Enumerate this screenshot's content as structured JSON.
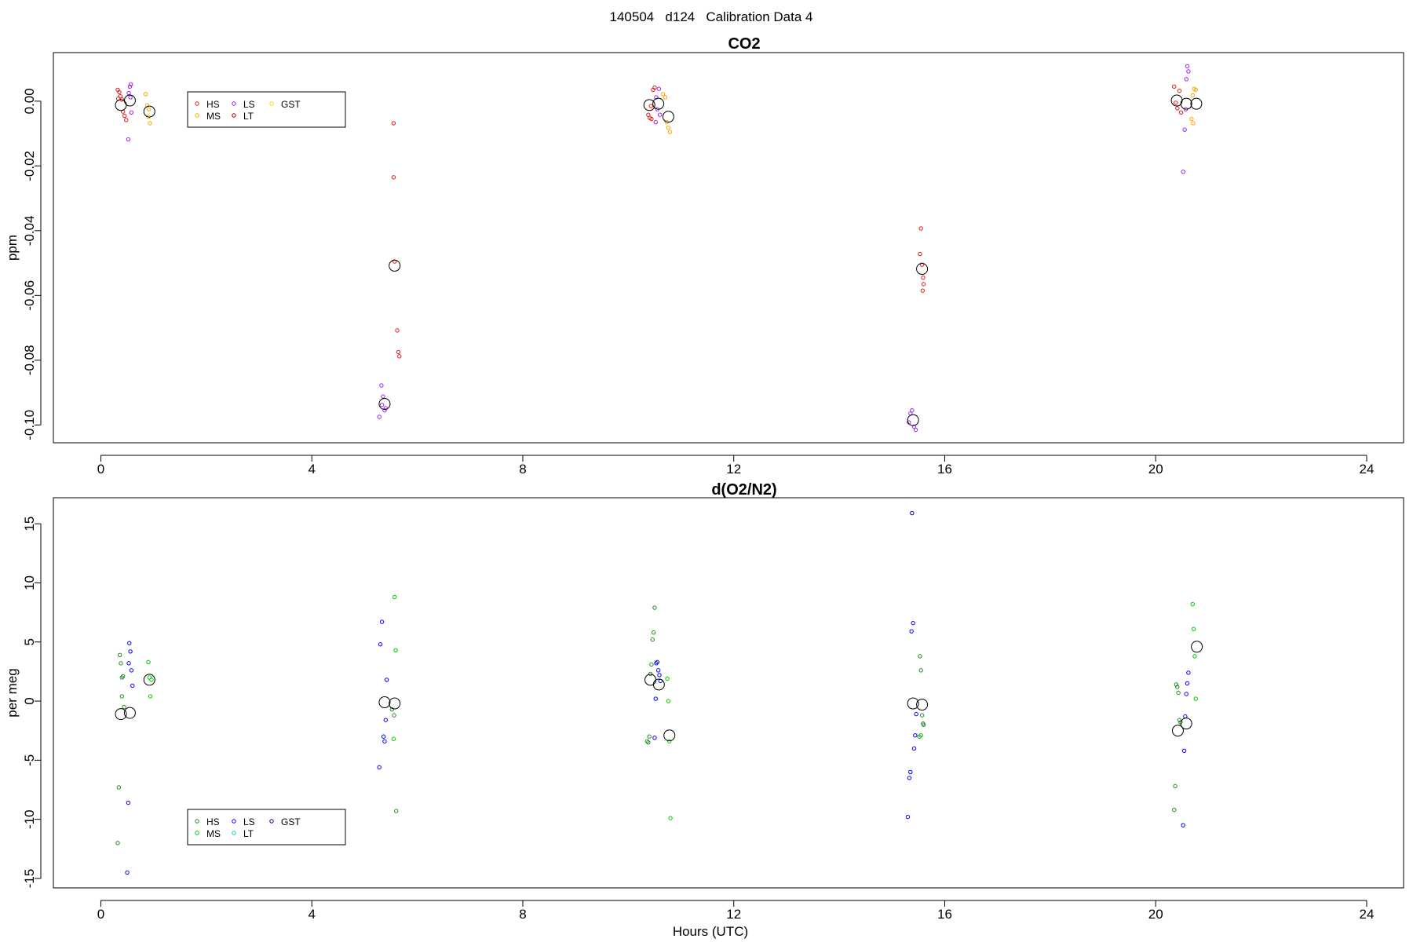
{
  "page_title": "140504   d124   Calibration Data 4",
  "chart_data": [
    {
      "type": "scatter",
      "title": "CO2",
      "xlabel": "",
      "ylabel": "ppm",
      "xlim": [
        -0.9,
        24.7
      ],
      "ylim": [
        -0.1055,
        0.015
      ],
      "x_ticks": [
        0,
        4,
        8,
        12,
        16,
        20,
        24
      ],
      "y_ticks": [
        0.0,
        -0.02,
        -0.04,
        -0.06,
        -0.08,
        -0.1
      ],
      "y_tick_labels": [
        "0.00",
        "-0.02",
        "-0.04",
        "-0.06",
        "-0.08",
        "-0.10"
      ],
      "grid": false,
      "legend": {
        "position": "top-left",
        "entries": [
          {
            "name": "HS",
            "color": "#E41A1C"
          },
          {
            "name": "MS",
            "color": "#FFA500"
          },
          {
            "name": "LS",
            "color": "#A020F0"
          },
          {
            "name": "LT",
            "color": "#8B0000"
          },
          {
            "name": "GST",
            "color": "#FFD700"
          }
        ]
      },
      "series": [
        {
          "name": "HS",
          "color": "#E41A1C",
          "points": [
            [
              0.32,
              0.0035
            ],
            [
              0.35,
              0.0028
            ],
            [
              0.37,
              0.0015
            ],
            [
              0.4,
              0.0005
            ],
            [
              0.42,
              -0.0032
            ],
            [
              0.45,
              -0.0045
            ],
            [
              0.48,
              -0.0058
            ],
            [
              0.33,
              0.0008
            ],
            [
              5.55,
              -0.0068
            ],
            [
              5.55,
              -0.0235
            ],
            [
              5.57,
              -0.0495
            ],
            [
              5.62,
              -0.0708
            ],
            [
              5.64,
              -0.0775
            ],
            [
              5.66,
              -0.0788
            ],
            [
              10.38,
              -0.0042
            ],
            [
              10.41,
              -0.0052
            ],
            [
              10.44,
              -0.0055
            ],
            [
              10.47,
              0.0035
            ],
            [
              10.5,
              0.0042
            ],
            [
              10.43,
              -0.0015
            ],
            [
              15.55,
              -0.0393
            ],
            [
              15.53,
              -0.0472
            ],
            [
              15.57,
              -0.0505
            ],
            [
              15.59,
              -0.0545
            ],
            [
              15.6,
              -0.0565
            ],
            [
              15.58,
              -0.0585
            ],
            [
              20.35,
              0.0045
            ],
            [
              20.38,
              -0.0005
            ],
            [
              20.41,
              -0.0022
            ],
            [
              20.45,
              0.0032
            ],
            [
              20.48,
              -0.0035
            ]
          ]
        },
        {
          "name": "LS",
          "color": "#A020F0",
          "points": [
            [
              0.52,
              -0.0118
            ],
            [
              0.55,
              0.0045
            ],
            [
              0.57,
              0.0052
            ],
            [
              0.53,
              0.0025
            ],
            [
              0.58,
              -0.0035
            ],
            [
              0.56,
              0.0012
            ],
            [
              5.28,
              -0.0975
            ],
            [
              5.32,
              -0.0878
            ],
            [
              5.35,
              -0.0912
            ],
            [
              5.38,
              -0.0955
            ],
            [
              5.4,
              -0.0948
            ],
            [
              5.33,
              -0.0938
            ],
            [
              10.52,
              -0.0065
            ],
            [
              10.55,
              -0.0025
            ],
            [
              10.58,
              0.0038
            ],
            [
              10.6,
              -0.0042
            ],
            [
              10.53,
              0.0012
            ],
            [
              15.32,
              -0.0992
            ],
            [
              15.35,
              -0.0965
            ],
            [
              15.38,
              -0.0955
            ],
            [
              15.42,
              -0.1005
            ],
            [
              15.45,
              -0.1015
            ],
            [
              20.52,
              -0.0218
            ],
            [
              20.55,
              -0.0088
            ],
            [
              20.58,
              0.0068
            ],
            [
              20.6,
              0.0108
            ],
            [
              20.62,
              0.0092
            ],
            [
              20.57,
              -0.0025
            ]
          ]
        },
        {
          "name": "MS",
          "color": "#FFA500",
          "points": [
            [
              0.85,
              0.0022
            ],
            [
              0.88,
              -0.0012
            ],
            [
              0.9,
              -0.0048
            ],
            [
              0.93,
              -0.0068
            ],
            [
              0.91,
              -0.0025
            ],
            [
              10.7,
              0.0012
            ],
            [
              10.73,
              -0.0065
            ],
            [
              10.76,
              -0.0082
            ],
            [
              10.79,
              -0.0095
            ],
            [
              10.66,
              0.0022
            ],
            [
              20.68,
              -0.0055
            ],
            [
              20.71,
              -0.0068
            ],
            [
              20.73,
              0.0038
            ],
            [
              20.76,
              0.0035
            ],
            [
              20.7,
              0.0018
            ]
          ]
        },
        {
          "name": "Mean",
          "color": "#000000",
          "marker": "large",
          "points": [
            [
              0.38,
              -0.0012
            ],
            [
              0.55,
              0.0002
            ],
            [
              0.92,
              -0.0032
            ],
            [
              5.38,
              -0.0935
            ],
            [
              5.57,
              -0.0508
            ],
            [
              10.4,
              -0.0012
            ],
            [
              10.57,
              -0.0008
            ],
            [
              10.76,
              -0.0048
            ],
            [
              15.4,
              -0.0985
            ],
            [
              15.57,
              -0.0518
            ],
            [
              20.4,
              0.0002
            ],
            [
              20.58,
              -0.0008
            ],
            [
              20.77,
              -0.0008
            ]
          ]
        }
      ]
    },
    {
      "type": "scatter",
      "title": "d(O2/N2)",
      "xlabel": "Hours (UTC)",
      "ylabel": "per meg",
      "xlim": [
        -0.9,
        24.7
      ],
      "ylim": [
        -15.8,
        17.2
      ],
      "x_ticks": [
        0,
        4,
        8,
        12,
        16,
        20,
        24
      ],
      "y_ticks": [
        15,
        10,
        5,
        0,
        -5,
        -10,
        -15
      ],
      "y_tick_labels": [
        "15",
        "10",
        "5",
        "0",
        "-5",
        "-10",
        "-15"
      ],
      "grid": false,
      "legend": {
        "position": "bottom-left",
        "entries": [
          {
            "name": "HS",
            "color": "#228B22"
          },
          {
            "name": "MS",
            "color": "#00CC00"
          },
          {
            "name": "LS",
            "color": "#0000FF"
          },
          {
            "name": "LT",
            "color": "#00CED1"
          },
          {
            "name": "GST",
            "color": "#00008B"
          }
        ]
      },
      "series": [
        {
          "name": "HS",
          "color": "#228B22",
          "points": [
            [
              0.32,
              -12.0
            ],
            [
              0.34,
              -7.3
            ],
            [
              0.36,
              3.9
            ],
            [
              0.38,
              3.2
            ],
            [
              0.4,
              2.0
            ],
            [
              0.42,
              2.1
            ],
            [
              0.4,
              0.4
            ],
            [
              0.44,
              -0.5
            ],
            [
              5.52,
              -0.7
            ],
            [
              5.56,
              -1.2
            ],
            [
              5.6,
              -9.3
            ],
            [
              10.36,
              -3.4
            ],
            [
              10.38,
              -3.5
            ],
            [
              10.4,
              -3.0
            ],
            [
              10.42,
              2.3
            ],
            [
              10.44,
              3.1
            ],
            [
              10.46,
              5.2
            ],
            [
              10.48,
              5.8
            ],
            [
              10.5,
              7.9
            ],
            [
              15.53,
              3.8
            ],
            [
              15.55,
              2.6
            ],
            [
              15.57,
              -1.2
            ],
            [
              15.59,
              -1.9
            ],
            [
              15.6,
              -2.0
            ],
            [
              15.52,
              -3.0
            ],
            [
              20.35,
              -9.2
            ],
            [
              20.37,
              -7.2
            ],
            [
              20.39,
              1.4
            ],
            [
              20.41,
              1.2
            ],
            [
              20.43,
              0.7
            ],
            [
              20.45,
              -1.6
            ],
            [
              20.47,
              -1.8
            ]
          ]
        },
        {
          "name": "LS",
          "color": "#0000FF",
          "points": [
            [
              0.5,
              -14.5
            ],
            [
              0.52,
              -8.6
            ],
            [
              0.54,
              4.9
            ],
            [
              0.56,
              4.2
            ],
            [
              0.58,
              2.6
            ],
            [
              0.6,
              1.3
            ],
            [
              0.53,
              3.2
            ],
            [
              5.28,
              -5.6
            ],
            [
              5.3,
              4.8
            ],
            [
              5.33,
              6.7
            ],
            [
              5.36,
              -3.0
            ],
            [
              5.38,
              -3.4
            ],
            [
              5.4,
              -1.6
            ],
            [
              5.42,
              1.8
            ],
            [
              10.55,
              3.3
            ],
            [
              10.57,
              2.6
            ],
            [
              10.59,
              2.2
            ],
            [
              10.61,
              1.7
            ],
            [
              10.53,
              3.2
            ],
            [
              10.52,
              0.2
            ],
            [
              10.5,
              -3.1
            ],
            [
              15.3,
              -9.8
            ],
            [
              15.33,
              -6.5
            ],
            [
              15.35,
              -6.0
            ],
            [
              15.37,
              5.9
            ],
            [
              15.4,
              6.6
            ],
            [
              15.42,
              -4.0
            ],
            [
              15.44,
              -2.9
            ],
            [
              15.46,
              -1.1
            ],
            [
              20.52,
              -10.5
            ],
            [
              20.54,
              -4.2
            ],
            [
              20.56,
              -1.3
            ],
            [
              20.58,
              0.6
            ],
            [
              20.6,
              1.5
            ],
            [
              20.62,
              2.4
            ]
          ]
        },
        {
          "name": "MS",
          "color": "#00CC00",
          "points": [
            [
              0.9,
              3.3
            ],
            [
              0.92,
              2.0
            ],
            [
              0.94,
              0.4
            ],
            [
              0.96,
              1.8
            ],
            [
              5.57,
              8.8
            ],
            [
              5.59,
              4.3
            ],
            [
              5.55,
              -3.2
            ],
            [
              10.74,
              1.9
            ],
            [
              10.76,
              0.0
            ],
            [
              10.78,
              -3.4
            ],
            [
              10.8,
              -9.9
            ],
            [
              15.55,
              -2.9
            ],
            [
              20.7,
              8.2
            ],
            [
              20.72,
              6.1
            ],
            [
              20.74,
              3.8
            ],
            [
              20.76,
              0.2
            ]
          ]
        },
        {
          "name": "GST",
          "color": "#00008B",
          "points": [
            [
              15.38,
              15.9
            ]
          ]
        },
        {
          "name": "Mean",
          "color": "#000000",
          "marker": "large",
          "points": [
            [
              0.38,
              -1.1
            ],
            [
              0.55,
              -1.0
            ],
            [
              0.92,
              1.8
            ],
            [
              5.38,
              -0.1
            ],
            [
              5.57,
              -0.2
            ],
            [
              10.42,
              1.8
            ],
            [
              10.58,
              1.4
            ],
            [
              10.78,
              -2.9
            ],
            [
              15.4,
              -0.2
            ],
            [
              15.57,
              -0.3
            ],
            [
              20.42,
              -2.5
            ],
            [
              20.58,
              -1.9
            ],
            [
              20.78,
              4.6
            ]
          ]
        }
      ]
    }
  ]
}
